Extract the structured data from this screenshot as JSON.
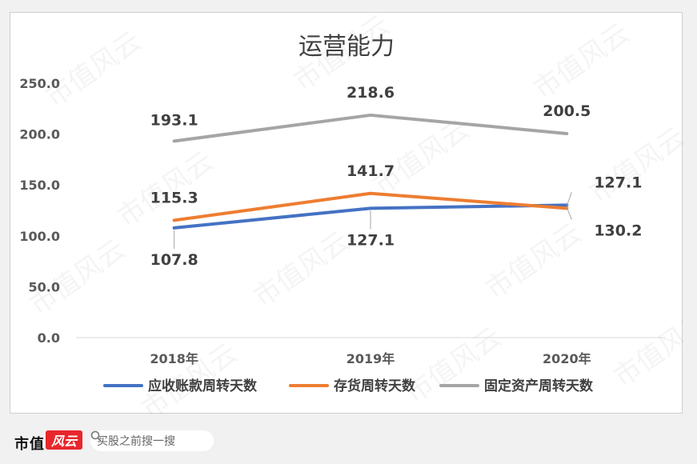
{
  "chart_data": {
    "type": "line",
    "title": "运营能力",
    "categories": [
      "2018年",
      "2019年",
      "2020年"
    ],
    "ylim": [
      0,
      250
    ],
    "yticks": [
      "0.0",
      "50.0",
      "100.0",
      "150.0",
      "200.0",
      "250.0"
    ],
    "grid": false,
    "legend": "bottom",
    "series": [
      {
        "name": "应收账款周转天数",
        "color": "#4472c4",
        "values": [
          107.8,
          127.1,
          130.2
        ],
        "labels": [
          "107.8",
          "127.1",
          "130.2"
        ]
      },
      {
        "name": "存货周转天数",
        "color": "#ed7d31",
        "values": [
          115.3,
          141.7,
          127.1
        ],
        "labels": [
          "115.3",
          "141.7",
          "127.1"
        ]
      },
      {
        "name": "固定资产周转天数",
        "color": "#a5a5a5",
        "values": [
          193.1,
          218.6,
          200.5
        ],
        "labels": [
          "193.1",
          "218.6",
          "200.5"
        ]
      }
    ]
  },
  "footer": {
    "brand": "市值",
    "brand_badge": "风云",
    "search_placeholder": "买股之前搜一搜",
    "search_icon": "search-icon"
  },
  "watermark": "市值风云"
}
